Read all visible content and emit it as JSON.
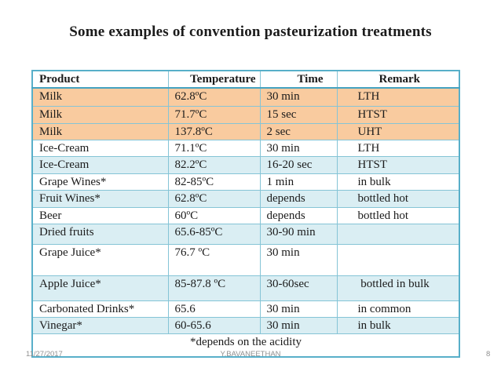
{
  "title": "Some examples of convention pasteurization treatments",
  "table": {
    "columns": [
      "Product",
      "Temperature",
      "Time",
      "Remark"
    ],
    "rows": [
      {
        "band": "peach",
        "product": "Milk",
        "temperature": "62.8ºC",
        "time": "30 min",
        "remark": "LTH"
      },
      {
        "band": "peach",
        "product": "Milk",
        "temperature": "71.7ºC",
        "time": "15 sec",
        "remark": "HTST"
      },
      {
        "band": "peach",
        "product": "Milk",
        "temperature": "137.8ºC",
        "time": "2 sec",
        "remark": "UHT"
      },
      {
        "band": "white",
        "product": "Ice-Cream",
        "temperature": "71.1ºC",
        "time": "30 min",
        "remark": "LTH"
      },
      {
        "band": "blue",
        "product": "Ice-Cream",
        "temperature": "82.2ºC",
        "time": "16-20 sec",
        "remark": "HTST"
      },
      {
        "band": "white",
        "product": "Grape Wines*",
        "temperature": "82-85ºC",
        "time": "1 min",
        "remark": "in bulk"
      },
      {
        "band": "blue",
        "product": "Fruit Wines*",
        "temperature": "62.8ºC",
        "time": "depends",
        "remark": "bottled hot"
      },
      {
        "band": "white",
        "product": "Beer",
        "temperature": "60ºC",
        "time": "depends",
        "remark": "bottled hot"
      },
      {
        "band": "blue",
        "product": "Dried fruits",
        "temperature": "65.6-85ºC",
        "time": "30-90 min",
        "remark": ""
      },
      {
        "band": "white",
        "product": "Grape Juice*",
        "temperature": "76.7 ºC",
        "time": "30 min",
        "remark": ""
      },
      {
        "band": "blue",
        "product": "Apple Juice*",
        "temperature": "85-87.8 ºC",
        "time": "30-60sec",
        "remark": " bottled in bulk"
      },
      {
        "band": "white",
        "product": "Carbonated Drinks*",
        "temperature": "65.6",
        "time": "30 min",
        "remark": "in common"
      },
      {
        "band": "blue",
        "product": "Vinegar*",
        "temperature": "60-65.6",
        "time": "30 min",
        "remark": "in bulk"
      }
    ],
    "footnote": "*depends on the acidity"
  },
  "footer": {
    "date": "11/27/2017",
    "author": "Y.BAVANEETHAN",
    "page_number": "8"
  },
  "colors": {
    "milk_highlight": "#f9cb9f",
    "band_blue": "#daeef3",
    "border_inner": "#85c4d6",
    "border_outer": "#58afc9",
    "header_underline": "#45a3c1",
    "ink": "#1b1b1b",
    "footer_text": "#909090"
  }
}
